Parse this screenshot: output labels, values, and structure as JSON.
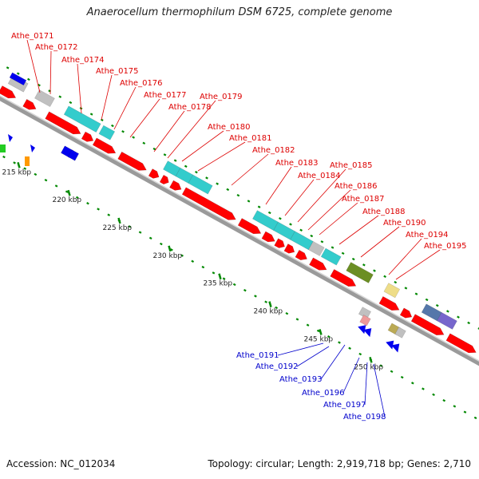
{
  "title": "Anaerocellum thermophilum DSM 6725, complete genome",
  "accession_label": "Accession: NC_012034",
  "genome_info": "Topology: circular; Length: 2,919,718 bp; Genes: 2,710",
  "ticks": [
    "215 kbp",
    "220 kbp",
    "225 kbp",
    "230 kbp",
    "235 kbp",
    "240 kbp",
    "245 kbp",
    "250 kbp"
  ],
  "top_genes": [
    "Athe_0171",
    "Athe_0172",
    "Athe_0174",
    "Athe_0175",
    "Athe_0176",
    "Athe_0177",
    "Athe_0178",
    "Athe_0179",
    "Athe_0180",
    "Athe_0181",
    "Athe_0182",
    "Athe_0183",
    "Athe_0184",
    "Athe_0185",
    "Athe_0186",
    "Athe_0187",
    "Athe_0188",
    "Athe_0190",
    "Athe_0194",
    "Athe_0195"
  ],
  "bottom_genes": [
    "Athe_0191",
    "Athe_0192",
    "Athe_0193",
    "Athe_0196",
    "Athe_0197",
    "Athe_0198"
  ],
  "colors": {
    "cds_red": "#ff0000",
    "cyan": "#33cccc",
    "gray": "#c0c0c0",
    "olive": "#6b8e23",
    "blue": "#0000ee",
    "slate": "#5577aa",
    "purple": "#7766cc",
    "yellow": "#eedd88",
    "khaki": "#bbaa55",
    "pink": "#ee9999",
    "green": "#22cc22",
    "orange": "#ff9900",
    "label_red": "#dd0000",
    "label_blue": "#0000cc",
    "dot_green": "#008800"
  }
}
